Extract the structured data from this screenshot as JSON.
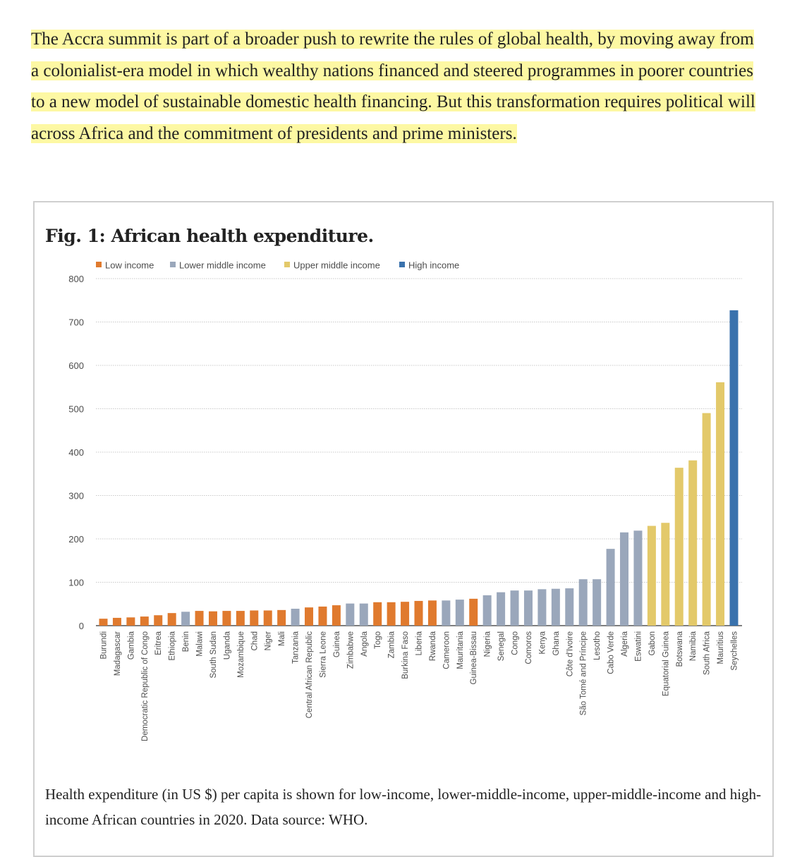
{
  "article": {
    "intro_text": "The Accra summit is part of a broader push to rewrite the rules of global health, by moving away from a colonialist-era model in which wealthy nations financed and steered programmes in poorer countries to a new model of sustainable domestic health financing. But this transformation requires political will across Africa and the commitment of presidents and prime ministers.",
    "highlight_color": "#fdf8a3"
  },
  "figure": {
    "title": "Fig. 1: African health expenditure.",
    "caption": "Health expenditure (in US $) per capita is shown for low-income, lower-middle-income, upper-middle-income and high-income African countries in 2020. Data source: WHO."
  },
  "chart_data": {
    "type": "bar",
    "title": "Fig. 1: African health expenditure.",
    "xlabel": "",
    "ylabel": "",
    "ylim": [
      0,
      800
    ],
    "yticks": [
      0,
      100,
      200,
      300,
      400,
      500,
      600,
      700,
      800
    ],
    "grid": true,
    "legend_position": "top-left",
    "legend": [
      {
        "name": "Low income",
        "color": "#e07a2e"
      },
      {
        "name": "Lower middle income",
        "color": "#9aa7bb"
      },
      {
        "name": "Upper middle income",
        "color": "#e3c96a"
      },
      {
        "name": "High income",
        "color": "#3a72ad"
      }
    ],
    "categories": [
      "Burundi",
      "Madagascar",
      "Gambia",
      "Democratic Republic of Congo",
      "Eritrea",
      "Ethiopia",
      "Benin",
      "Malawi",
      "South Sudan",
      "Uganda",
      "Mozambique",
      "Chad",
      "Niger",
      "Mali",
      "Tanzania",
      "Central African Republic",
      "Sierra Leone",
      "Guinea",
      "Zimbabwe",
      "Angola",
      "Togo",
      "Zambia",
      "Burkina Faso",
      "Liberia",
      "Rwanda",
      "Cameroon",
      "Mauritania",
      "Guinea-Bissau",
      "Nigeria",
      "Senegal",
      "Congo",
      "Comoros",
      "Kenya",
      "Ghana",
      "Côte d'Ivoire",
      "São Tomé and Príncipe",
      "Lesotho",
      "Cabo Verde",
      "Algeria",
      "Eswatini",
      "Gabon",
      "Equatorial Guinea",
      "Botswana",
      "Namibia",
      "South Africa",
      "Mauritius",
      "Seychelles"
    ],
    "values": [
      16,
      18,
      19,
      21,
      24,
      29,
      32,
      34,
      33,
      34,
      34,
      35,
      35,
      36,
      39,
      42,
      44,
      47,
      51,
      51,
      54,
      54,
      55,
      57,
      58,
      58,
      60,
      62,
      70,
      77,
      81,
      81,
      84,
      85,
      86,
      107,
      107,
      177,
      215,
      219,
      230,
      237,
      364,
      381,
      490,
      561,
      727
    ],
    "groups": [
      "Low income",
      "Low income",
      "Low income",
      "Low income",
      "Low income",
      "Low income",
      "Lower middle income",
      "Low income",
      "Low income",
      "Low income",
      "Low income",
      "Low income",
      "Low income",
      "Low income",
      "Lower middle income",
      "Low income",
      "Low income",
      "Low income",
      "Lower middle income",
      "Lower middle income",
      "Low income",
      "Low income",
      "Low income",
      "Low income",
      "Low income",
      "Lower middle income",
      "Lower middle income",
      "Low income",
      "Lower middle income",
      "Lower middle income",
      "Lower middle income",
      "Lower middle income",
      "Lower middle income",
      "Lower middle income",
      "Lower middle income",
      "Lower middle income",
      "Lower middle income",
      "Lower middle income",
      "Lower middle income",
      "Lower middle income",
      "Upper middle income",
      "Upper middle income",
      "Upper middle income",
      "Upper middle income",
      "Upper middle income",
      "Upper middle income",
      "High income"
    ]
  }
}
